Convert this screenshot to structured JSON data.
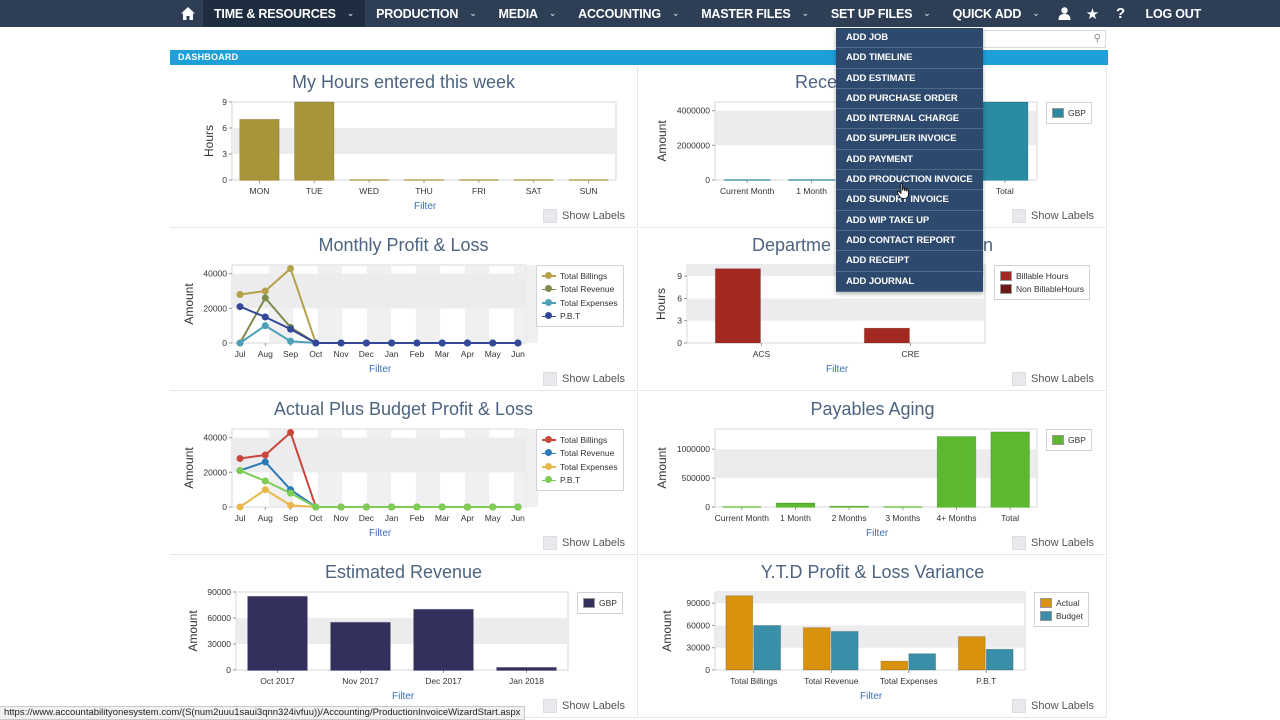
{
  "nav": {
    "items": [
      {
        "label": "TIME & RESOURCES",
        "active": true
      },
      {
        "label": "PRODUCTION"
      },
      {
        "label": "MEDIA"
      },
      {
        "label": "ACCOUNTING"
      },
      {
        "label": "MASTER FILES"
      },
      {
        "label": "SET UP FILES"
      },
      {
        "label": "QUICK ADD"
      }
    ],
    "logout": "LOG OUT",
    "help": "?"
  },
  "dashboard_label": "DASHBOARD",
  "quick_add_menu": [
    "ADD JOB",
    "ADD TIMELINE",
    "ADD ESTIMATE",
    "ADD PURCHASE ORDER",
    "ADD INTERNAL CHARGE",
    "ADD SUPPLIER INVOICE",
    "ADD PAYMENT",
    "ADD PRODUCTION INVOICE",
    "ADD SUNDRY INVOICE",
    "ADD WIP TAKE UP",
    "ADD CONTACT REPORT",
    "ADD RECEIPT",
    "ADD JOURNAL"
  ],
  "filter_label": "Filter",
  "show_labels": "Show Labels",
  "status_url": "https://www.accountabilityonesystem.com/(S(num2uuu1saui3qnn324ivfuu))/Accounting/ProductionInvoiceWizardStart.aspx",
  "chart_data": [
    {
      "id": "hours",
      "type": "bar",
      "title": "My Hours entered this week",
      "ylabel": "Hours",
      "categories": [
        "MON",
        "TUE",
        "WED",
        "THU",
        "FRI",
        "SAT",
        "SUN"
      ],
      "values": [
        7,
        9,
        0,
        0,
        0,
        0,
        0
      ],
      "ylim": [
        0,
        9
      ],
      "yticks": [
        0,
        3,
        6,
        9
      ],
      "color": "#a8953a"
    },
    {
      "id": "receivables",
      "type": "bar",
      "title": "Rece",
      "ylabel": "Amount",
      "categories": [
        "Current Month",
        "1 Month",
        "",
        "",
        "Total"
      ],
      "values": [
        0,
        20000,
        0,
        0,
        4500000
      ],
      "ylim": [
        0,
        4500000
      ],
      "yticks": [
        0,
        2000000,
        4000000
      ],
      "legend": [
        "GBP"
      ],
      "color": "#2a8ba3"
    },
    {
      "id": "monthly_pl",
      "type": "line",
      "title": "Monthly Profit & Loss",
      "ylabel": "Amount",
      "categories": [
        "Jul",
        "Aug",
        "Sep",
        "Oct",
        "Nov",
        "Dec",
        "Jan",
        "Feb",
        "Mar",
        "Apr",
        "May",
        "Jun"
      ],
      "ylim": [
        0,
        45000
      ],
      "yticks": [
        0,
        20000,
        40000
      ],
      "series": [
        {
          "name": "Total Billings",
          "color": "#b4a24a",
          "values": [
            28000,
            30000,
            43000,
            0,
            0,
            0,
            0,
            0,
            0,
            0,
            0,
            0
          ]
        },
        {
          "name": "Total Revenue",
          "color": "#7c8b4b",
          "values": [
            0,
            26000,
            9000,
            0,
            0,
            0,
            0,
            0,
            0,
            0,
            0,
            0
          ]
        },
        {
          "name": "Total Expenses",
          "color": "#4e9fb8",
          "values": [
            0,
            10000,
            1000,
            0,
            0,
            0,
            0,
            0,
            0,
            0,
            0,
            0
          ]
        },
        {
          "name": "P.B.T",
          "color": "#34489a",
          "values": [
            21000,
            15000,
            8000,
            0,
            0,
            0,
            0,
            0,
            0,
            0,
            0,
            0
          ]
        }
      ]
    },
    {
      "id": "department",
      "type": "bar",
      "title": "Departme",
      "title_tail": "n",
      "ylabel": "Hours",
      "categories": [
        "ACS",
        "CRE"
      ],
      "series": [
        {
          "name": "Billable Hours",
          "color": "#a32a20",
          "values": [
            10,
            2
          ]
        },
        {
          "name": "Non BillableHours",
          "color": "#6b1a1a",
          "values": [
            0,
            0
          ]
        }
      ],
      "ylim": [
        0,
        10.5
      ],
      "yticks": [
        0,
        3,
        6,
        9
      ]
    },
    {
      "id": "actual_budget_pl",
      "type": "line",
      "title": "Actual Plus Budget Profit & Loss",
      "ylabel": "Amount",
      "categories": [
        "Jul",
        "Aug",
        "Sep",
        "Oct",
        "Nov",
        "Dec",
        "Jan",
        "Feb",
        "Mar",
        "Apr",
        "May",
        "Jun"
      ],
      "ylim": [
        0,
        45000
      ],
      "yticks": [
        0,
        20000,
        40000
      ],
      "series": [
        {
          "name": "Total Billings",
          "color": "#c8463c",
          "values": [
            28000,
            30000,
            43000,
            0,
            0,
            0,
            0,
            0,
            0,
            0,
            0,
            0
          ]
        },
        {
          "name": "Total Revenue",
          "color": "#2a7ab8",
          "values": [
            21000,
            26000,
            10000,
            0,
            0,
            0,
            0,
            0,
            0,
            0,
            0,
            0
          ]
        },
        {
          "name": "Total Expenses",
          "color": "#e8b84a",
          "values": [
            0,
            10000,
            1000,
            0,
            0,
            0,
            0,
            0,
            0,
            0,
            0,
            0
          ]
        },
        {
          "name": "P.B.T",
          "color": "#7ccc55",
          "values": [
            21000,
            15000,
            8000,
            0,
            0,
            0,
            0,
            0,
            0,
            0,
            0,
            0
          ]
        }
      ]
    },
    {
      "id": "payables",
      "type": "bar",
      "title": "Payables Aging",
      "ylabel": "Amount",
      "categories": [
        "Current Month",
        "1 Month",
        "2 Months",
        "3 Months",
        "4+ Months",
        "Total"
      ],
      "values": [
        0,
        70000,
        15000,
        0,
        1220000,
        1300000
      ],
      "ylim": [
        0,
        1350000
      ],
      "yticks": [
        0,
        500000,
        1000000
      ],
      "legend": [
        "GBP"
      ],
      "color": "#5cb82e"
    },
    {
      "id": "estimated_revenue",
      "type": "bar",
      "title": "Estimated Revenue",
      "ylabel": "Amount",
      "categories": [
        "Oct 2017",
        "Nov 2017",
        "Dec 2017",
        "Jan 2018"
      ],
      "values": [
        85000,
        55000,
        70000,
        3000
      ],
      "ylim": [
        0,
        90000
      ],
      "yticks": [
        0,
        30000,
        60000,
        90000
      ],
      "legend": [
        "GBP"
      ],
      "color": "#33305e"
    },
    {
      "id": "ytd_variance",
      "type": "bar",
      "title": "Y.T.D Profit & Loss Variance",
      "ylabel": "Amount",
      "categories": [
        "Total Billings",
        "Total Revenue",
        "Total Expenses",
        "P.B.T"
      ],
      "series": [
        {
          "name": "Actual",
          "color": "#d8920e",
          "values": [
            100000,
            57000,
            12000,
            45000
          ]
        },
        {
          "name": "Budget",
          "color": "#3a8fa8",
          "values": [
            60000,
            52000,
            22000,
            28000
          ]
        }
      ],
      "ylim": [
        0,
        105000
      ],
      "yticks": [
        0,
        30000,
        60000,
        90000
      ]
    }
  ]
}
